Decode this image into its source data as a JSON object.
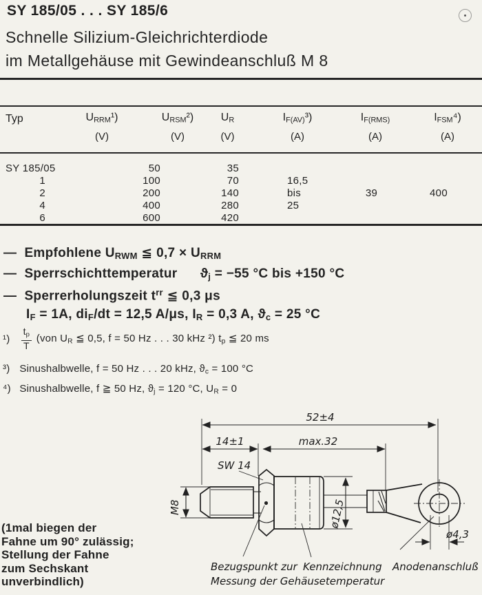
{
  "colors": {
    "ink": "#1f1f1f",
    "paper": "#f3f2ec"
  },
  "header": {
    "title": "SY 185/05 . . . SY 185/6",
    "subtitle_line1": "Schnelle Silizium-Gleichrichterdiode",
    "subtitle_line2": "im Metallgehäuse mit Gewindeanschluß M 8"
  },
  "table": {
    "col_typ": "Typ",
    "col_urrm": "U<sub>RRM</sub>¹)",
    "col_ursm": "U<sub>RSM</sub>²)",
    "col_ur": "U<sub>R</sub>",
    "col_ifav": "I<sub>F(AV)</sub>³)",
    "col_ifrms": "I<sub>F(RMS)</sub>",
    "col_ifsm": "I<sub>FSM</sub>⁴)",
    "unit_v": "(V)",
    "unit_a": "(A)",
    "rows": [
      {
        "typ": "SY 185/05",
        "urrm": "50",
        "ur": "35",
        "ifav": "",
        "ifrms": "",
        "ifsm": ""
      },
      {
        "typ": "1",
        "urrm": "100",
        "ur": "70",
        "ifav": "16,5",
        "ifrms": "",
        "ifsm": ""
      },
      {
        "typ": "2",
        "urrm": "200",
        "ur": "140",
        "ifav": "bis",
        "ifrms": "39",
        "ifsm": "400"
      },
      {
        "typ": "4",
        "urrm": "400",
        "ur": "280",
        "ifav": "25",
        "ifrms": "",
        "ifsm": ""
      },
      {
        "typ": "6",
        "urrm": "600",
        "ur": "420",
        "ifav": "",
        "ifrms": "",
        "ifsm": ""
      }
    ]
  },
  "notes": {
    "line1": "—&nbsp; Empfohlene U<sub>RWM</sub> ≦ 0,7 × U<sub>RRM</sub>",
    "line2": "—&nbsp; Sperrschichttemperatur &nbsp;&nbsp;&nbsp;&nbsp; ϑ<sub>j</sub> = −55 °C bis +150 °C",
    "line3": "—&nbsp; Sperrerholungszeit t<sup>rr</sup> ≦ 0,3 μs",
    "line4": "I<sub>F</sub> = 1A, di<sub>F</sub>/dt = 12,5 A/μs, I<sub>R</sub> = 0,3 A, ϑ<sub>c</sub> = 25 °C"
  },
  "footnotes": {
    "f1_marker": "¹)",
    "f1_num": "t<sub>p</sub>",
    "f1_den": "T",
    "f1_text": "(von U<sub>R</sub> ≦ 0,5, f = 50 Hz . . . 30 kHz ²) t<sub>p</sub> ≦ 20 ms",
    "f3_marker": "³)",
    "f3_text": "Sinushalbwelle, f = 50 Hz . . . 20 kHz, ϑ<sub>c</sub> = 100 °C",
    "f4_marker": "⁴)",
    "f4_text": "Sinushalbwelle, f ≧ 50 Hz, ϑ<sub>j</sub> = 120 °C, U<sub>R</sub> = 0"
  },
  "drawing": {
    "dim_52": "52±4",
    "dim_14": "14±1",
    "dim_32": "max.32",
    "sw14": "SW 14",
    "m8": "M8",
    "d125": "ø12,5",
    "d43": "ø4,3",
    "label_ref_1": "Bezugspunkt zur",
    "label_ref_2": "Messung der Gehäusetemperatur",
    "label_marking": "Kennzeichnung",
    "label_anode": "Anodenanschluß"
  },
  "side_note": {
    "line1": "(1mal biegen der",
    "line2": "Fahne um 90° zulässig;",
    "line3": "Stellung der Fahne",
    "line4": "zum Sechskant",
    "line5": "unverbindlich)"
  }
}
